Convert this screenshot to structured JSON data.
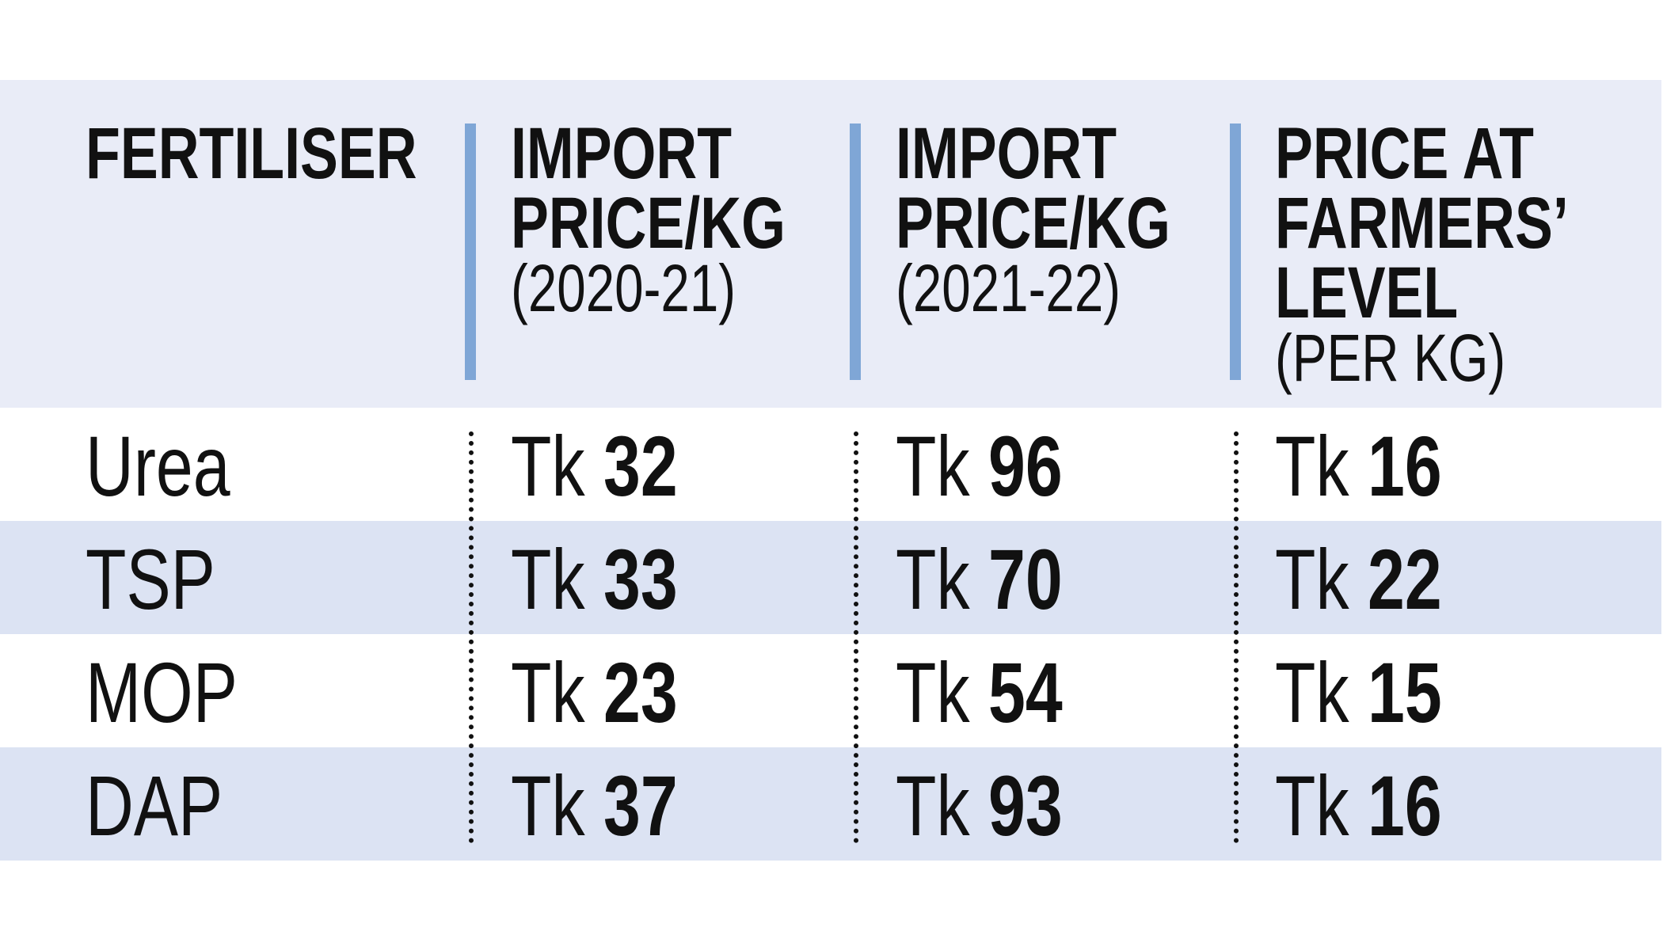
{
  "table": {
    "header": [
      {
        "title": [
          "FERTILISER"
        ]
      },
      {
        "title": [
          "IMPORT",
          "PRICE/KG"
        ],
        "note": "(2020-21)"
      },
      {
        "title": [
          "IMPORT",
          "PRICE/KG"
        ],
        "note": "(2021-22)"
      },
      {
        "title": [
          "PRICE AT",
          "FARMERS’",
          "LEVEL"
        ],
        "note": "(PER KG)"
      }
    ],
    "rows": [
      {
        "fertiliser": "Urea",
        "cells": [
          {
            "unit": "Tk",
            "value": 32
          },
          {
            "unit": "Tk",
            "value": 96
          },
          {
            "unit": "Tk",
            "value": 16
          }
        ]
      },
      {
        "fertiliser": "TSP",
        "cells": [
          {
            "unit": "Tk",
            "value": 33
          },
          {
            "unit": "Tk",
            "value": 70
          },
          {
            "unit": "Tk",
            "value": 22
          }
        ]
      },
      {
        "fertiliser": "MOP",
        "cells": [
          {
            "unit": "Tk",
            "value": 23
          },
          {
            "unit": "Tk",
            "value": 54
          },
          {
            "unit": "Tk",
            "value": 15
          }
        ]
      },
      {
        "fertiliser": "DAP",
        "cells": [
          {
            "unit": "Tk",
            "value": 37
          },
          {
            "unit": "Tk",
            "value": 93
          },
          {
            "unit": "Tk",
            "value": 16
          }
        ]
      }
    ]
  }
}
